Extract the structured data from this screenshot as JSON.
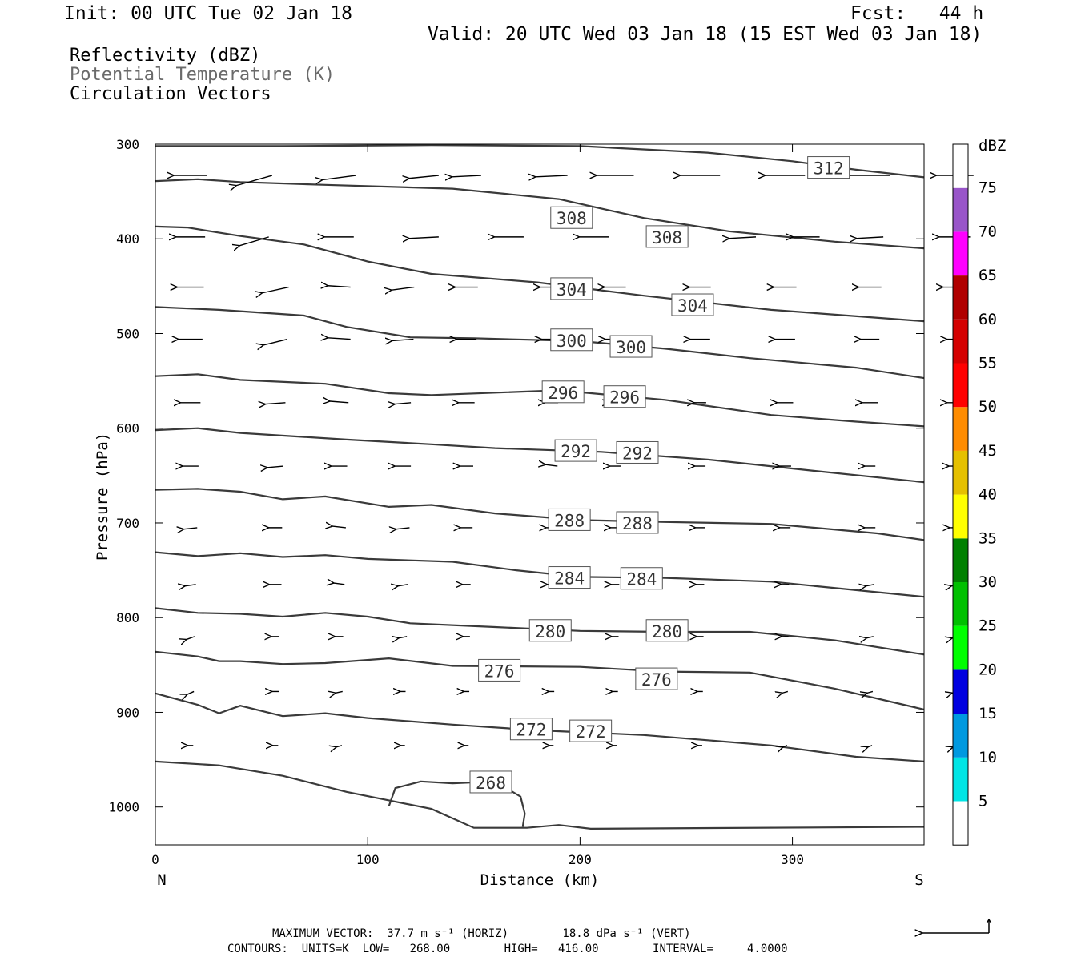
{
  "header": {
    "init": "Init: 00 UTC Tue 02 Jan 18",
    "fcst": "Fcst:   44 h",
    "valid": "Valid: 20 UTC Wed 03 Jan 18 (15 EST Wed 03 Jan 18)"
  },
  "legend_text": {
    "line1": "Reflectivity (dBZ)",
    "line2": "Potential Temperature (K)",
    "line3": "Circulation Vectors"
  },
  "footer": {
    "line1": "MAXIMUM VECTOR:  37.7 m s⁻¹ (HORIZ)        18.8 dPa s⁻¹ (VERT)",
    "line2": "CONTOURS:  UNITS=K  LOW=   268.00        HIGH=   416.00        INTERVAL=     4.0000"
  },
  "colors": {
    "contour": "#3a3a3a",
    "frame": "#000000"
  },
  "chart_data": {
    "type": "line",
    "xlabel": "Distance (km)",
    "ylabel": "Pressure (hPa)",
    "xlim": [
      0,
      362
    ],
    "ylim": [
      1040,
      300
    ],
    "y_scale": "linear (inverted)",
    "x_ticks": [
      0,
      100,
      200,
      300
    ],
    "y_ticks": [
      300,
      400,
      500,
      600,
      700,
      800,
      900,
      1000
    ],
    "x_end_labels": {
      "left": "N",
      "right": "S"
    },
    "colorbar": {
      "title": "dBZ",
      "levels": [
        5,
        10,
        15,
        20,
        25,
        30,
        35,
        40,
        45,
        50,
        55,
        60,
        65,
        70,
        75
      ],
      "colors": [
        "#ffffff",
        "#00e5e5",
        "#0099e0",
        "#0000e0",
        "#00ff00",
        "#00c000",
        "#008000",
        "#ffff00",
        "#e5c000",
        "#ff8c00",
        "#ff0000",
        "#d40000",
        "#b00000",
        "#ff00ff",
        "#9955c9",
        "#ffffff"
      ]
    },
    "contour_labels": [
      {
        "value": "312",
        "x": 317,
        "p": 325
      },
      {
        "value": "308",
        "x": 196,
        "p": 378
      },
      {
        "value": "308",
        "x": 241,
        "p": 398
      },
      {
        "value": "304",
        "x": 196,
        "p": 453
      },
      {
        "value": "304",
        "x": 253,
        "p": 470
      },
      {
        "value": "300",
        "x": 196,
        "p": 507
      },
      {
        "value": "300",
        "x": 224,
        "p": 514
      },
      {
        "value": "296",
        "x": 192,
        "p": 562
      },
      {
        "value": "296",
        "x": 221,
        "p": 567
      },
      {
        "value": "292",
        "x": 198,
        "p": 624
      },
      {
        "value": "292",
        "x": 227,
        "p": 626
      },
      {
        "value": "288",
        "x": 195,
        "p": 697
      },
      {
        "value": "288",
        "x": 227,
        "p": 700
      },
      {
        "value": "284",
        "x": 195,
        "p": 758
      },
      {
        "value": "284",
        "x": 229,
        "p": 759
      },
      {
        "value": "280",
        "x": 186,
        "p": 814
      },
      {
        "value": "280",
        "x": 241,
        "p": 814
      },
      {
        "value": "276",
        "x": 162,
        "p": 856
      },
      {
        "value": "276",
        "x": 236,
        "p": 865
      },
      {
        "value": "272",
        "x": 177,
        "p": 918
      },
      {
        "value": "272",
        "x": 205,
        "p": 920
      },
      {
        "value": "268",
        "x": 158,
        "p": 974
      }
    ],
    "series": [
      {
        "name": "312",
        "points": [
          [
            0,
            302
          ],
          [
            60,
            302
          ],
          [
            130,
            301
          ],
          [
            200,
            302
          ],
          [
            260,
            309
          ],
          [
            300,
            318
          ],
          [
            330,
            327
          ],
          [
            362,
            335
          ]
        ]
      },
      {
        "name": "308",
        "points": [
          [
            0,
            339
          ],
          [
            20,
            337
          ],
          [
            40,
            340
          ],
          [
            80,
            343
          ],
          [
            140,
            347
          ],
          [
            190,
            358
          ],
          [
            230,
            378
          ],
          [
            270,
            392
          ],
          [
            320,
            403
          ],
          [
            362,
            410
          ]
        ]
      },
      {
        "name": "304",
        "points": [
          [
            0,
            387
          ],
          [
            15,
            388
          ],
          [
            40,
            397
          ],
          [
            70,
            406
          ],
          [
            100,
            424
          ],
          [
            130,
            437
          ],
          [
            180,
            446
          ],
          [
            230,
            460
          ],
          [
            290,
            475
          ],
          [
            362,
            487
          ]
        ]
      },
      {
        "name": "300",
        "points": [
          [
            0,
            472
          ],
          [
            30,
            475
          ],
          [
            70,
            481
          ],
          [
            90,
            493
          ],
          [
            120,
            504
          ],
          [
            150,
            505
          ],
          [
            200,
            508
          ],
          [
            240,
            516
          ],
          [
            280,
            526
          ],
          [
            330,
            536
          ],
          [
            362,
            547
          ]
        ]
      },
      {
        "name": "296",
        "points": [
          [
            0,
            545
          ],
          [
            20,
            543
          ],
          [
            40,
            549
          ],
          [
            80,
            553
          ],
          [
            110,
            563
          ],
          [
            130,
            565
          ],
          [
            190,
            560
          ],
          [
            240,
            570
          ],
          [
            290,
            586
          ],
          [
            330,
            593
          ],
          [
            362,
            598
          ]
        ]
      },
      {
        "name": "292",
        "points": [
          [
            0,
            602
          ],
          [
            20,
            600
          ],
          [
            40,
            605
          ],
          [
            90,
            612
          ],
          [
            130,
            617
          ],
          [
            160,
            621
          ],
          [
            210,
            625
          ],
          [
            260,
            633
          ],
          [
            310,
            645
          ],
          [
            362,
            657
          ]
        ]
      },
      {
        "name": "288",
        "points": [
          [
            0,
            665
          ],
          [
            20,
            664
          ],
          [
            40,
            667
          ],
          [
            60,
            675
          ],
          [
            80,
            672
          ],
          [
            110,
            683
          ],
          [
            130,
            681
          ],
          [
            160,
            690
          ],
          [
            200,
            697
          ],
          [
            240,
            699
          ],
          [
            290,
            701
          ],
          [
            340,
            711
          ],
          [
            362,
            718
          ]
        ]
      },
      {
        "name": "284",
        "points": [
          [
            0,
            731
          ],
          [
            20,
            735
          ],
          [
            40,
            732
          ],
          [
            60,
            736
          ],
          [
            80,
            734
          ],
          [
            100,
            738
          ],
          [
            140,
            741
          ],
          [
            170,
            750
          ],
          [
            200,
            757
          ],
          [
            240,
            758
          ],
          [
            290,
            762
          ],
          [
            330,
            771
          ],
          [
            362,
            778
          ]
        ]
      },
      {
        "name": "280",
        "points": [
          [
            0,
            790
          ],
          [
            20,
            795
          ],
          [
            40,
            796
          ],
          [
            60,
            799
          ],
          [
            80,
            795
          ],
          [
            100,
            799
          ],
          [
            120,
            806
          ],
          [
            160,
            810
          ],
          [
            200,
            814
          ],
          [
            240,
            815
          ],
          [
            280,
            815
          ],
          [
            320,
            824
          ],
          [
            362,
            839
          ]
        ]
      },
      {
        "name": "276",
        "points": [
          [
            0,
            836
          ],
          [
            20,
            841
          ],
          [
            30,
            846
          ],
          [
            40,
            846
          ],
          [
            60,
            849
          ],
          [
            80,
            848
          ],
          [
            110,
            843
          ],
          [
            140,
            851
          ],
          [
            200,
            852
          ],
          [
            240,
            857
          ],
          [
            280,
            858
          ],
          [
            320,
            875
          ],
          [
            362,
            897
          ]
        ]
      },
      {
        "name": "272",
        "points": [
          [
            0,
            880
          ],
          [
            20,
            892
          ],
          [
            30,
            901
          ],
          [
            40,
            893
          ],
          [
            60,
            904
          ],
          [
            80,
            901
          ],
          [
            100,
            906
          ],
          [
            140,
            913
          ],
          [
            180,
            919
          ],
          [
            230,
            924
          ],
          [
            290,
            935
          ],
          [
            330,
            947
          ],
          [
            362,
            952
          ]
        ]
      },
      {
        "name": "268",
        "points": [
          [
            0,
            952
          ],
          [
            30,
            956
          ],
          [
            60,
            967
          ],
          [
            90,
            984
          ],
          [
            110,
            993
          ],
          [
            130,
            1002
          ],
          [
            150,
            1022
          ],
          [
            175,
            1022
          ],
          [
            190,
            1019
          ],
          [
            205,
            1023
          ],
          [
            362,
            1021
          ]
        ]
      }
    ],
    "closed_contour_268": [
      [
        110,
        999
      ],
      [
        113,
        980
      ],
      [
        125,
        973
      ],
      [
        140,
        975
      ],
      [
        160,
        973
      ],
      [
        172,
        989
      ],
      [
        174,
        1007
      ],
      [
        173,
        1021
      ]
    ],
    "vectors": [
      {
        "p": 333,
        "x": [
          0,
          30,
          70,
          110,
          130,
          170,
          200,
          240,
          280,
          320,
          360
        ],
        "len": [
          25,
          27,
          25,
          22,
          22,
          24,
          28,
          30,
          30,
          30,
          28
        ],
        "slope": [
          0,
          7,
          3,
          2,
          1,
          1,
          0,
          0,
          0,
          0,
          0
        ]
      },
      {
        "p": 398,
        "x": [
          0,
          30,
          70,
          110,
          150,
          190,
          225,
          260,
          290,
          320,
          360
        ],
        "len": [
          22,
          22,
          22,
          22,
          22,
          22,
          20,
          20,
          20,
          20,
          24
        ],
        "slope": [
          0,
          6,
          0,
          1,
          0,
          0,
          0,
          1,
          0,
          1,
          0
        ]
      },
      {
        "p": 451,
        "x": [
          0,
          40,
          70,
          100,
          130,
          170,
          200,
          240,
          280,
          320,
          360
        ],
        "len": [
          20,
          20,
          17,
          17,
          17,
          17,
          16,
          16,
          17,
          17,
          18
        ],
        "slope": [
          0,
          4,
          -1,
          2,
          0,
          0,
          0,
          0,
          0,
          0,
          0
        ]
      },
      {
        "p": 506,
        "x": [
          0,
          40,
          70,
          100,
          130,
          170,
          200,
          240,
          280,
          320,
          360
        ],
        "len": [
          18,
          18,
          17,
          16,
          15,
          15,
          15,
          15,
          15,
          14,
          12
        ],
        "slope": [
          0,
          4,
          -1,
          1,
          0,
          0,
          0,
          0,
          0,
          0,
          0
        ]
      },
      {
        "p": 573,
        "x": [
          0,
          40,
          70,
          100,
          130,
          170,
          200,
          240,
          280,
          320,
          360
        ],
        "len": [
          15,
          15,
          14,
          12,
          12,
          10,
          9,
          9,
          12,
          12,
          12
        ],
        "slope": [
          0,
          1,
          -1,
          1,
          0,
          0,
          0,
          0,
          0,
          0,
          0
        ]
      },
      {
        "p": 640,
        "x": [
          0,
          40,
          70,
          100,
          130,
          170,
          200,
          240,
          280,
          320,
          360
        ],
        "len": [
          12,
          12,
          12,
          12,
          10,
          9,
          8,
          8,
          9,
          8,
          9
        ],
        "slope": [
          0,
          1,
          0,
          0,
          0,
          -1,
          0,
          0,
          0,
          0,
          0
        ]
      },
      {
        "p": 705,
        "x": [
          0,
          40,
          70,
          100,
          130,
          170,
          200,
          240,
          280,
          320,
          360
        ],
        "len": [
          10,
          10,
          10,
          10,
          9,
          8,
          7,
          7,
          8,
          8,
          8
        ],
        "slope": [
          1,
          0,
          -1,
          1,
          0,
          0,
          0,
          0,
          0,
          0,
          0
        ]
      },
      {
        "p": 765,
        "x": [
          0,
          40,
          70,
          100,
          130,
          170,
          200,
          240,
          280,
          320,
          360
        ],
        "len": [
          8,
          9,
          8,
          7,
          6,
          6,
          6,
          6,
          6,
          6,
          5
        ],
        "slope": [
          1,
          0,
          -1,
          1,
          0,
          0,
          0,
          0,
          0,
          1,
          1
        ]
      },
      {
        "p": 820,
        "x": [
          0,
          40,
          70,
          100,
          130,
          170,
          200,
          240,
          280,
          320,
          360
        ],
        "len": [
          6,
          6,
          6,
          6,
          5,
          5,
          5,
          5,
          5,
          5,
          4
        ],
        "slope": [
          2,
          0,
          0,
          1,
          0,
          0,
          0,
          0,
          0,
          1,
          1
        ]
      },
      {
        "p": 878,
        "x": [
          0,
          40,
          70,
          100,
          130,
          170,
          200,
          240,
          280,
          320,
          360
        ],
        "len": [
          5,
          5,
          5,
          4,
          4,
          4,
          4,
          4,
          4,
          4,
          4
        ],
        "slope": [
          2,
          0,
          1,
          0,
          0,
          0,
          0,
          0,
          1,
          1,
          1
        ]
      },
      {
        "p": 935,
        "x": [
          0,
          40,
          70,
          100,
          130,
          170,
          200,
          240,
          280,
          320,
          360
        ],
        "len": [
          4,
          4,
          4,
          3,
          3,
          3,
          3,
          3,
          3,
          3,
          3
        ],
        "slope": [
          0,
          0,
          1,
          0,
          0,
          0,
          0,
          0,
          1,
          1,
          1
        ]
      }
    ]
  }
}
